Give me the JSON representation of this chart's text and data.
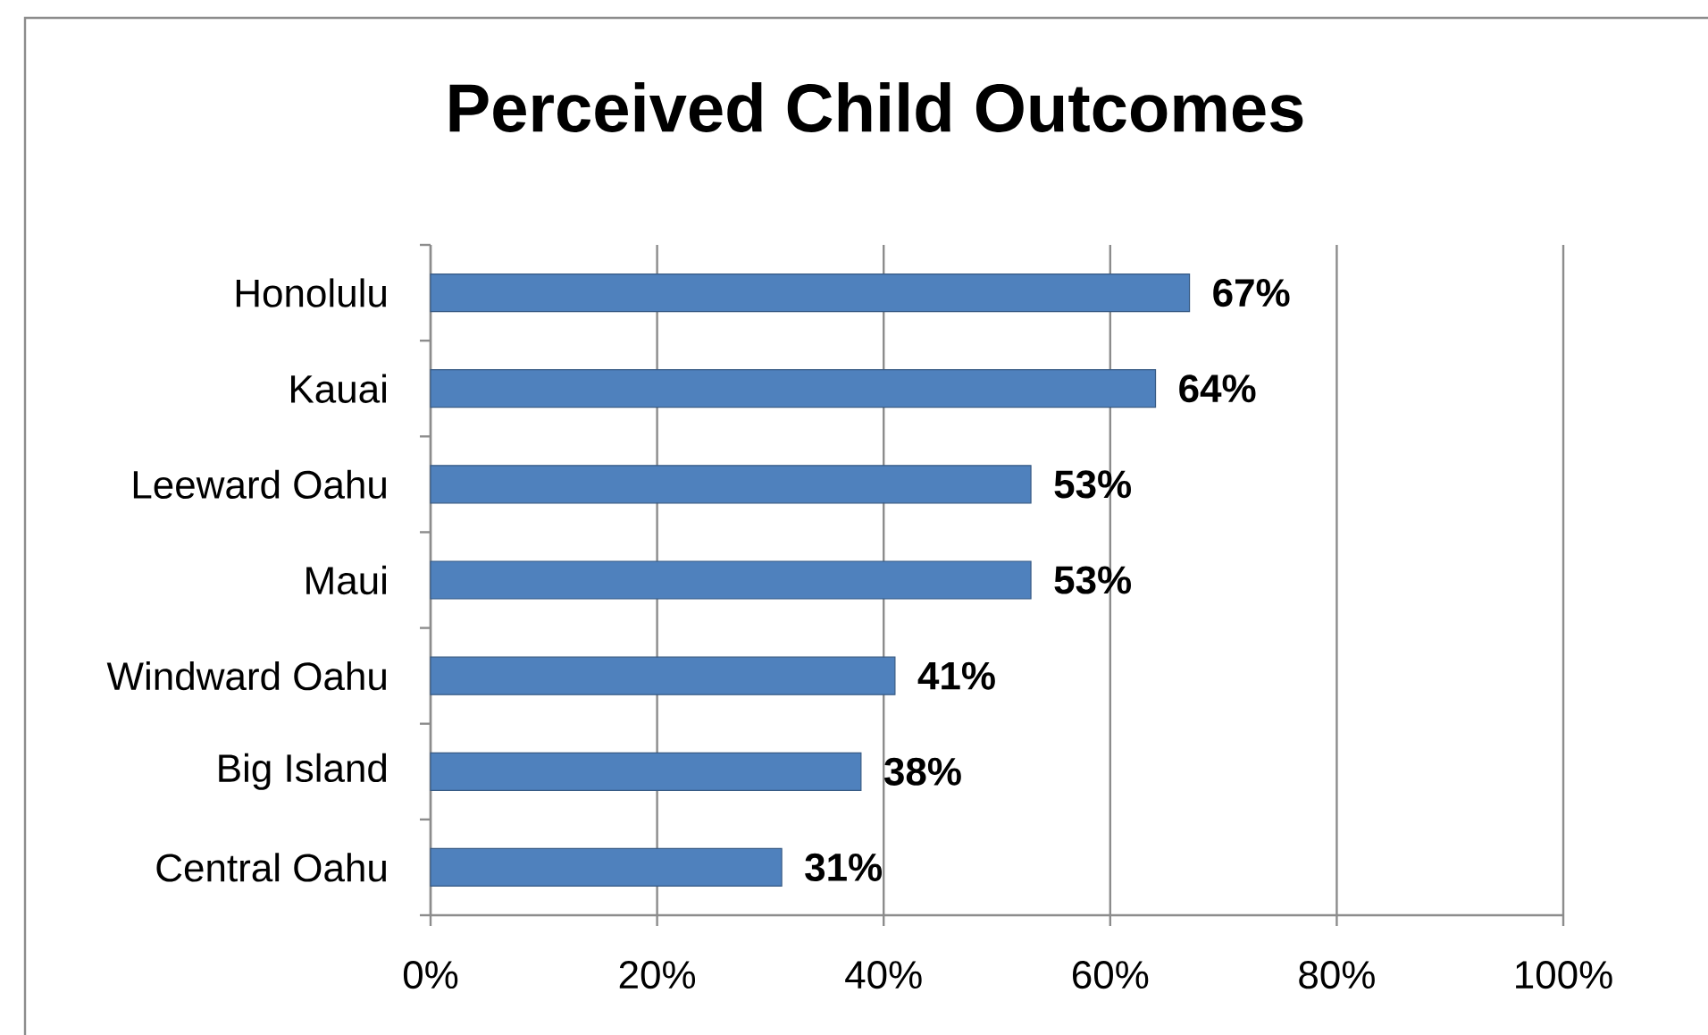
{
  "chart_data": {
    "type": "bar",
    "orientation": "horizontal",
    "title": "Perceived Child Outcomes",
    "categories": [
      "Honolulu",
      "Kauai",
      "Leeward Oahu",
      "Maui",
      "Windward Oahu",
      "Big Island",
      "Central Oahu"
    ],
    "values": [
      67,
      64,
      53,
      53,
      41,
      38,
      31
    ],
    "value_labels": [
      "67%",
      "64%",
      "53%",
      "53%",
      "41%",
      "38%",
      "31%"
    ],
    "color": "#4f81bd",
    "xlim": [
      0,
      100
    ],
    "xticks": [
      {
        "value": 0,
        "label": "0%"
      },
      {
        "value": 20,
        "label": "20%"
      },
      {
        "value": 40,
        "label": "40%"
      },
      {
        "value": 60,
        "label": "60%"
      },
      {
        "value": 80,
        "label": "80%"
      },
      {
        "value": 100,
        "label": "100%"
      }
    ],
    "grid": "x"
  }
}
